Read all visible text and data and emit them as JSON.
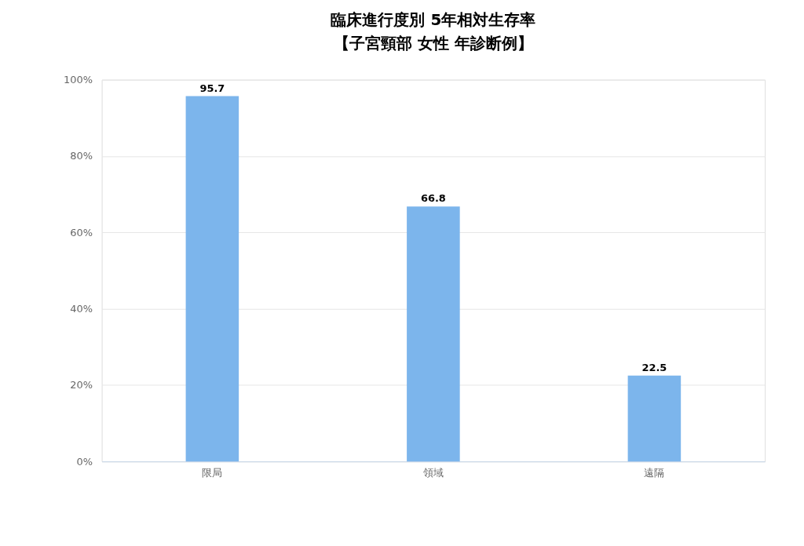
{
  "chart_data": {
    "type": "bar",
    "title": "臨床進行度別 5年相対生存率",
    "subtitle": "【子宮頸部 女性 年診断例】",
    "categories": [
      "限局",
      "領域",
      "遠隔"
    ],
    "values": [
      95.7,
      66.8,
      22.5
    ],
    "color": "#7cb5ec",
    "ylim": [
      0,
      100
    ],
    "yticks": [
      {
        "value": 0,
        "label": "0%"
      },
      {
        "value": 20,
        "label": "20%"
      },
      {
        "value": 40,
        "label": "40%"
      },
      {
        "value": 60,
        "label": "60%"
      },
      {
        "value": 80,
        "label": "80%"
      },
      {
        "value": 100,
        "label": "100%"
      }
    ],
    "grid": "y",
    "data_labels": true
  }
}
